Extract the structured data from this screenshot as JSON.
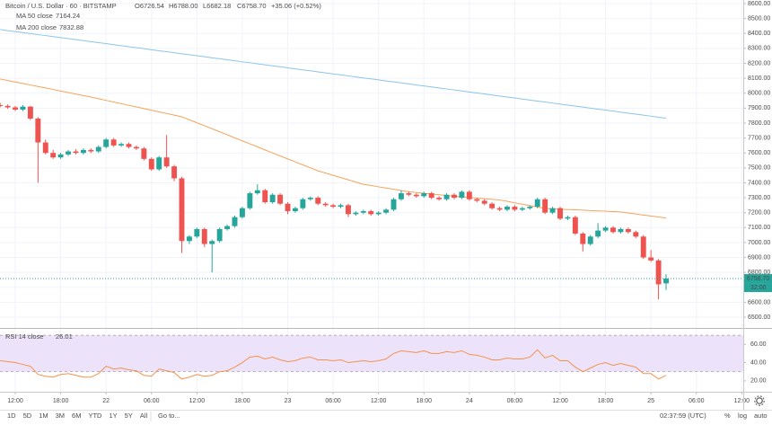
{
  "chart_data": {
    "type": "candlestick",
    "title": "Bitcoin / U.S. Dollar · 60 · BITSTAMP",
    "header_values": [
      "O6726.54",
      "H6788.00",
      "L6682.18",
      "C6758.70",
      "+35.06 (+0.52%)"
    ],
    "up_color": "#26a69a",
    "down_color": "#ef5350",
    "candles": [
      [
        7920,
        7935,
        7905,
        7915
      ],
      [
        7915,
        7925,
        7895,
        7905
      ],
      [
        7905,
        7915,
        7880,
        7890
      ],
      [
        7890,
        7920,
        7880,
        7910
      ],
      [
        7910,
        7915,
        7820,
        7830
      ],
      [
        7830,
        7840,
        7400,
        7670
      ],
      [
        7670,
        7690,
        7590,
        7600
      ],
      [
        7600,
        7620,
        7560,
        7570
      ],
      [
        7570,
        7600,
        7560,
        7590
      ],
      [
        7590,
        7620,
        7580,
        7610
      ],
      [
        7610,
        7625,
        7590,
        7600
      ],
      [
        7600,
        7630,
        7590,
        7620
      ],
      [
        7620,
        7630,
        7600,
        7610
      ],
      [
        7610,
        7650,
        7600,
        7640
      ],
      [
        7640,
        7700,
        7630,
        7690
      ],
      [
        7690,
        7700,
        7640,
        7650
      ],
      [
        7650,
        7670,
        7640,
        7660
      ],
      [
        7660,
        7670,
        7630,
        7640
      ],
      [
        7640,
        7650,
        7620,
        7630
      ],
      [
        7630,
        7640,
        7550,
        7560
      ],
      [
        7560,
        7570,
        7480,
        7490
      ],
      [
        7490,
        7580,
        7480,
        7570
      ],
      [
        7570,
        7720,
        7500,
        7510
      ],
      [
        7510,
        7520,
        7410,
        7430
      ],
      [
        7430,
        7440,
        6930,
        7010
      ],
      [
        7010,
        7050,
        6990,
        7040
      ],
      [
        7040,
        7100,
        7030,
        7090
      ],
      [
        7090,
        7100,
        6970,
        6990
      ],
      [
        6990,
        7020,
        6800,
        7010
      ],
      [
        7010,
        7100,
        7000,
        7090
      ],
      [
        7090,
        7120,
        7080,
        7110
      ],
      [
        7110,
        7180,
        7100,
        7170
      ],
      [
        7170,
        7240,
        7160,
        7230
      ],
      [
        7230,
        7340,
        7220,
        7330
      ],
      [
        7330,
        7390,
        7320,
        7350
      ],
      [
        7350,
        7360,
        7260,
        7270
      ],
      [
        7270,
        7330,
        7260,
        7320
      ],
      [
        7320,
        7330,
        7250,
        7260
      ],
      [
        7260,
        7270,
        7190,
        7210
      ],
      [
        7210,
        7240,
        7200,
        7230
      ],
      [
        7230,
        7300,
        7220,
        7290
      ],
      [
        7290,
        7310,
        7280,
        7300
      ],
      [
        7300,
        7310,
        7250,
        7260
      ],
      [
        7260,
        7270,
        7240,
        7250
      ],
      [
        7250,
        7260,
        7230,
        7240
      ],
      [
        7240,
        7260,
        7230,
        7250
      ],
      [
        7250,
        7260,
        7170,
        7190
      ],
      [
        7190,
        7210,
        7180,
        7200
      ],
      [
        7200,
        7220,
        7190,
        7210
      ],
      [
        7210,
        7220,
        7180,
        7190
      ],
      [
        7190,
        7210,
        7180,
        7200
      ],
      [
        7200,
        7230,
        7190,
        7220
      ],
      [
        7220,
        7300,
        7210,
        7290
      ],
      [
        7290,
        7350,
        7280,
        7330
      ],
      [
        7330,
        7340,
        7310,
        7320
      ],
      [
        7320,
        7330,
        7300,
        7310
      ],
      [
        7310,
        7340,
        7300,
        7330
      ],
      [
        7330,
        7340,
        7290,
        7300
      ],
      [
        7300,
        7310,
        7280,
        7290
      ],
      [
        7290,
        7330,
        7280,
        7320
      ],
      [
        7320,
        7330,
        7290,
        7300
      ],
      [
        7300,
        7350,
        7290,
        7340
      ],
      [
        7340,
        7350,
        7280,
        7290
      ],
      [
        7290,
        7300,
        7270,
        7280
      ],
      [
        7280,
        7290,
        7250,
        7260
      ],
      [
        7260,
        7270,
        7220,
        7230
      ],
      [
        7230,
        7240,
        7210,
        7220
      ],
      [
        7220,
        7250,
        7210,
        7240
      ],
      [
        7240,
        7250,
        7210,
        7220
      ],
      [
        7220,
        7240,
        7210,
        7230
      ],
      [
        7230,
        7250,
        7220,
        7240
      ],
      [
        7240,
        7300,
        7230,
        7290
      ],
      [
        7290,
        7300,
        7190,
        7200
      ],
      [
        7200,
        7240,
        7190,
        7230
      ],
      [
        7230,
        7240,
        7150,
        7160
      ],
      [
        7160,
        7180,
        7150,
        7170
      ],
      [
        7170,
        7180,
        7050,
        7060
      ],
      [
        7060,
        7070,
        6940,
        6990
      ],
      [
        6990,
        7050,
        6980,
        7040
      ],
      [
        7040,
        7130,
        7030,
        7080
      ],
      [
        7080,
        7110,
        7070,
        7100
      ],
      [
        7100,
        7110,
        7060,
        7070
      ],
      [
        7070,
        7100,
        7060,
        7090
      ],
      [
        7090,
        7100,
        7060,
        7070
      ],
      [
        7070,
        7080,
        7030,
        7040
      ],
      [
        7040,
        7050,
        6890,
        6900
      ],
      [
        6900,
        6950,
        6870,
        6880
      ],
      [
        6880,
        6890,
        6620,
        6720
      ],
      [
        6726.54,
        6788.0,
        6682.18,
        6758.7
      ]
    ],
    "series": [
      {
        "name": "MA 50 close",
        "legend_value": "7164.24",
        "color": "#f6a35a",
        "values": [
          8095,
          8085,
          8075,
          8065,
          8055,
          8045,
          8035,
          8025,
          8014,
          8004,
          7994,
          7984,
          7974,
          7963,
          7952,
          7941,
          7930,
          7919,
          7908,
          7897,
          7886,
          7875,
          7864,
          7853,
          7842,
          7822,
          7802,
          7782,
          7762,
          7742,
          7722,
          7701,
          7681,
          7661,
          7641,
          7620,
          7600,
          7580,
          7560,
          7540,
          7520,
          7500,
          7480,
          7465,
          7450,
          7435,
          7420,
          7405,
          7390,
          7382,
          7373,
          7365,
          7357,
          7348,
          7340,
          7335,
          7330,
          7325,
          7320,
          7315,
          7310,
          7306,
          7302,
          7298,
          7293,
          7289,
          7285,
          7276,
          7266,
          7257,
          7247,
          7238,
          7228,
          7226,
          7224,
          7221,
          7219,
          7217,
          7214,
          7212,
          7210,
          7207,
          7205,
          7198,
          7191,
          7184,
          7178,
          7171,
          7164.24
        ]
      },
      {
        "name": "MA 200 close",
        "legend_value": "7832.88",
        "color": "#8cc4e8",
        "values": [
          8426,
          8419,
          8413,
          8406,
          8399,
          8392,
          8386,
          8379,
          8372,
          8365,
          8359,
          8352,
          8345,
          8338,
          8332,
          8325,
          8318,
          8311,
          8305,
          8298,
          8291,
          8284,
          8278,
          8271,
          8264,
          8258,
          8251,
          8244,
          8237,
          8231,
          8224,
          8217,
          8210,
          8204,
          8197,
          8190,
          8183,
          8177,
          8170,
          8163,
          8156,
          8150,
          8143,
          8136,
          8129,
          8123,
          8116,
          8109,
          8102,
          8096,
          8089,
          8082,
          8076,
          8069,
          8062,
          8055,
          8049,
          8042,
          8035,
          8028,
          8022,
          8015,
          8008,
          8001,
          7995,
          7988,
          7981,
          7974,
          7968,
          7961,
          7954,
          7947,
          7941,
          7934,
          7927,
          7920,
          7914,
          7907,
          7900,
          7893,
          7887,
          7880,
          7873,
          7866,
          7860,
          7853,
          7846,
          7839,
          7832.88
        ]
      }
    ],
    "last_price": {
      "value": 6758.7,
      "label": "6758.70"
    },
    "countdown": "32:00",
    "ylim": [
      6428,
      8624
    ],
    "yticks": [
      {
        "value": 8600,
        "label": "8600.00"
      },
      {
        "value": 8500,
        "label": "8500.00"
      },
      {
        "value": 8400,
        "label": "8400.00"
      },
      {
        "value": 8300,
        "label": "8300.00"
      },
      {
        "value": 8200,
        "label": "8200.00"
      },
      {
        "value": 8100,
        "label": "8100.00"
      },
      {
        "value": 8000,
        "label": "8000.00"
      },
      {
        "value": 7900,
        "label": "7900.00"
      },
      {
        "value": 7800,
        "label": "7800.00"
      },
      {
        "value": 7700,
        "label": "7700.00"
      },
      {
        "value": 7600,
        "label": "7600.00"
      },
      {
        "value": 7500,
        "label": "7500.00"
      },
      {
        "value": 7400,
        "label": "7400.00"
      },
      {
        "value": 7300,
        "label": "7300.00"
      },
      {
        "value": 7200,
        "label": "7200.00"
      },
      {
        "value": 7100,
        "label": "7100.00"
      },
      {
        "value": 7000,
        "label": "7000.00"
      },
      {
        "value": 6900,
        "label": "6900.00"
      },
      {
        "value": 6800,
        "label": "6800.00"
      },
      {
        "value": 6700,
        "label": "6700.00"
      },
      {
        "value": 6600,
        "label": "6600.00"
      },
      {
        "value": 6500,
        "label": "6500.00"
      }
    ],
    "xlim": [
      -0.02,
      98.2
    ],
    "xticks": [
      {
        "value": 2,
        "label": "12:00"
      },
      {
        "value": 8,
        "label": "18:00"
      },
      {
        "value": 14,
        "label": "22"
      },
      {
        "value": 20,
        "label": "06:00"
      },
      {
        "value": 26,
        "label": "12:00"
      },
      {
        "value": 32,
        "label": "18:00"
      },
      {
        "value": 38,
        "label": "23"
      },
      {
        "value": 44,
        "label": "06:00"
      },
      {
        "value": 50,
        "label": "12:00"
      },
      {
        "value": 56,
        "label": "18:00"
      },
      {
        "value": 62,
        "label": "24"
      },
      {
        "value": 68,
        "label": "06:00"
      },
      {
        "value": 74,
        "label": "12:00"
      },
      {
        "value": 80,
        "label": "18:00"
      },
      {
        "value": 86,
        "label": "25"
      },
      {
        "value": 92,
        "label": "06:00"
      },
      {
        "value": 98,
        "label": "12:00"
      }
    ],
    "rsi": {
      "name": "RSI 14 close",
      "legend_value": "26.01",
      "color": "#f5924a",
      "band_color": "#ece3fa",
      "band": [
        30,
        70
      ],
      "ylim": [
        8,
        77
      ],
      "yticks": [
        {
          "value": 60,
          "label": "60.00"
        },
        {
          "value": 40,
          "label": "40.00"
        },
        {
          "value": 20,
          "label": "20.00"
        }
      ],
      "values": [
        42,
        41,
        40,
        38,
        36,
        27,
        25,
        24,
        27,
        28,
        26,
        24,
        24,
        28,
        36,
        33,
        34,
        32,
        31,
        26,
        25,
        33,
        31,
        29,
        22,
        24,
        27,
        25,
        26,
        30,
        31,
        35,
        40,
        46,
        47,
        44,
        46,
        43,
        41,
        42,
        45,
        46,
        43,
        43,
        42,
        43,
        40,
        41,
        42,
        41,
        42,
        44,
        50,
        53,
        52,
        51,
        53,
        50,
        50,
        52,
        51,
        53,
        49,
        48,
        46,
        43,
        43,
        45,
        44,
        44,
        46,
        54,
        45,
        48,
        42,
        42,
        35,
        30,
        34,
        38,
        40,
        37,
        39,
        37,
        35,
        28,
        28,
        22,
        26.01
      ]
    },
    "toolbar": {
      "ranges": [
        "1D",
        "5D",
        "1M",
        "3M",
        "6M",
        "YTD",
        "1Y",
        "5Y",
        "All"
      ],
      "goto": "Go to...",
      "clock": "02:37:59 (UTC)",
      "options": [
        "%",
        "log",
        "auto"
      ]
    }
  }
}
